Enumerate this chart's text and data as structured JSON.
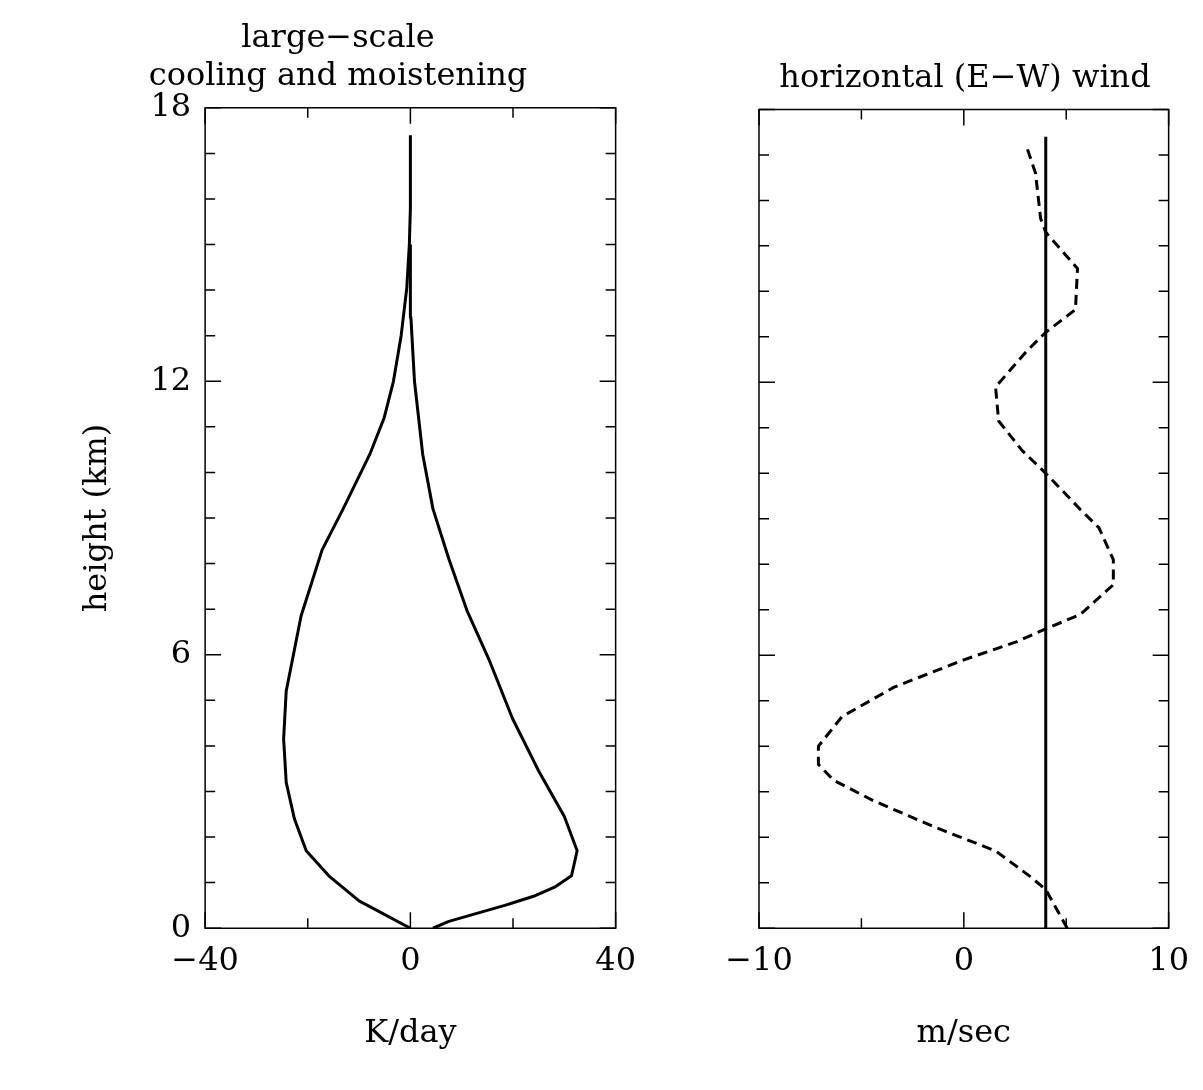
{
  "chart_data": [
    {
      "type": "line",
      "title": "large−scale\ncooling and moistening",
      "xlabel": "K/day",
      "ylabel": "height (km)",
      "xlim": [
        -40,
        40
      ],
      "xticks": [
        {
          "value": -40,
          "label": "−40"
        },
        {
          "value": -20,
          "label": null
        },
        0,
        {
          "value": 20,
          "label": null
        },
        40
      ],
      "ylim": [
        0,
        18
      ],
      "yticks": [
        0,
        {
          "value": 1,
          "label": null
        },
        {
          "value": 2,
          "label": null
        },
        {
          "value": 3,
          "label": null
        },
        {
          "value": 4,
          "label": null
        },
        {
          "value": 5,
          "label": null
        },
        6,
        {
          "value": 7,
          "label": null
        },
        {
          "value": 8,
          "label": null
        },
        {
          "value": 9,
          "label": null
        },
        {
          "value": 10,
          "label": null
        },
        {
          "value": 11,
          "label": null
        },
        12,
        {
          "value": 13,
          "label": null
        },
        {
          "value": 14,
          "label": null
        },
        {
          "value": 15,
          "label": null
        },
        {
          "value": 16,
          "label": null
        },
        {
          "value": 17,
          "label": null
        },
        18
      ],
      "line_style": "solid",
      "series": [
        {
          "color": "#000000",
          "x": [
            0,
            -10,
            -15.9,
            -20.3,
            -22.6,
            -24.2,
            -24.7,
            -24.2,
            -21.3,
            -17.2,
            -13.1,
            -7.9,
            -5.1,
            -3.3,
            -1.8,
            -0.7,
            -0.2,
            0,
            0
          ],
          "values": [
            0,
            0.6,
            1.15,
            1.7,
            2.4,
            3.2,
            4.15,
            5.2,
            6.85,
            8.3,
            9.2,
            10.4,
            11.2,
            12,
            13,
            14.05,
            15,
            15.8,
            17.4
          ]
        },
        {
          "color": "#000000",
          "x": [
            4.4,
            7.5,
            18.4,
            24,
            28.1,
            31.4,
            32.5,
            30,
            25,
            19.9,
            15.3,
            11.1,
            7.5,
            4.4,
            2.4,
            0.8,
            0.1,
            0
          ],
          "values": [
            0,
            0.15,
            0.5,
            0.7,
            0.9,
            1.15,
            1.7,
            2.45,
            3.45,
            4.6,
            5.9,
            6.95,
            8.1,
            9.2,
            10.4,
            12,
            13.4,
            15
          ]
        }
      ]
    },
    {
      "type": "line",
      "title": "horizontal (E−W) wind",
      "xlabel": "m/sec",
      "xlim": [
        -10,
        10
      ],
      "xticks": [
        {
          "value": -10,
          "label": "−10"
        },
        {
          "value": -5,
          "label": null
        },
        0,
        {
          "value": 5,
          "label": null
        },
        10
      ],
      "ylim": [
        0,
        18
      ],
      "yticks": [
        0,
        {
          "value": 1,
          "label": null
        },
        {
          "value": 2,
          "label": null
        },
        {
          "value": 3,
          "label": null
        },
        {
          "value": 4,
          "label": null
        },
        {
          "value": 5,
          "label": null
        },
        6,
        {
          "value": 7,
          "label": null
        },
        {
          "value": 8,
          "label": null
        },
        {
          "value": 9,
          "label": null
        },
        {
          "value": 10,
          "label": null
        },
        {
          "value": 11,
          "label": null
        },
        12,
        {
          "value": 13,
          "label": null
        },
        {
          "value": 14,
          "label": null
        },
        {
          "value": 15,
          "label": null
        },
        {
          "value": 16,
          "label": null
        },
        {
          "value": 17,
          "label": null
        },
        18
      ],
      "tick_labels": "x",
      "series": [
        {
          "color": "#000000",
          "line_style": "solid",
          "x": [
            4,
            4
          ],
          "values": [
            0,
            17.4
          ]
        },
        {
          "color": "#000000",
          "line_style": "dashed",
          "x": [
            5.05,
            4,
            3.2,
            1.55,
            -1.3,
            -4.4,
            -6.35,
            -7.1,
            -7.1,
            -5.95,
            -3.4,
            0,
            2.6,
            4.1,
            5.7,
            7.3,
            7.3,
            6.6,
            5.7,
            4,
            2.85,
            1.7,
            1.55,
            3.1,
            4,
            5.45,
            5.55,
            4,
            3.75,
            3.5,
            3.05
          ],
          "values": [
            0,
            0.85,
            1.15,
            1.7,
            2.2,
            2.8,
            3.25,
            3.6,
            4,
            4.65,
            5.3,
            5.9,
            6.3,
            6.6,
            6.9,
            7.55,
            8.1,
            8.8,
            9.2,
            10,
            10.5,
            11.15,
            11.9,
            12.7,
            13.1,
            13.6,
            14.5,
            15.3,
            15.6,
            16.6,
            17.2
          ]
        }
      ]
    }
  ]
}
